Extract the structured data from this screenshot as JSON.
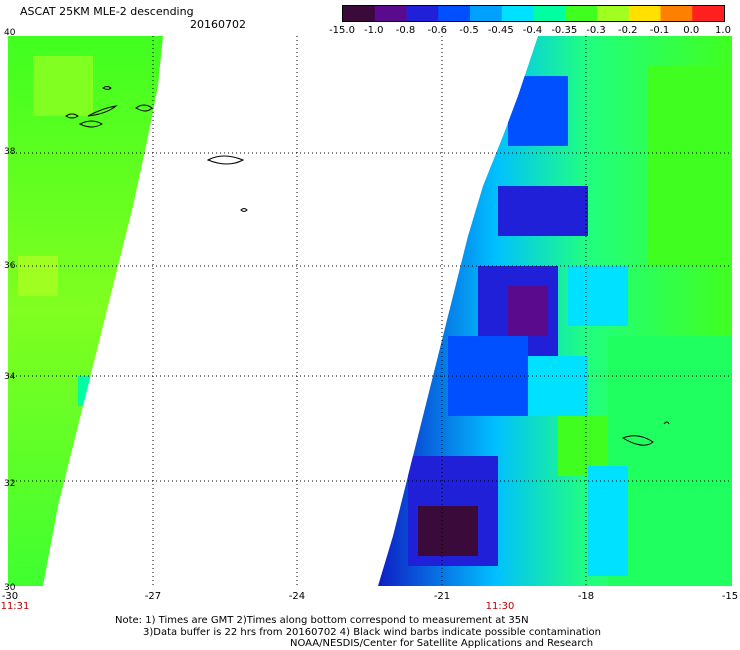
{
  "header": {
    "title": "ASCAT 25KM MLE-2 descending",
    "date": "20160702"
  },
  "colorbar": {
    "colors": [
      "#3a0a3a",
      "#5a0a8c",
      "#2020d8",
      "#0050ff",
      "#00a0ff",
      "#00e0ff",
      "#00ffa0",
      "#40ff20",
      "#a0ff20",
      "#ffe000",
      "#ff8000",
      "#ff2020"
    ],
    "labels": [
      "-15.0",
      "-1.0",
      "-0.8",
      "-0.6",
      "-0.5",
      "-0.45",
      "-0.4",
      "-0.35",
      "-0.3",
      "-0.2",
      "-0.1",
      "0.0",
      "1.0"
    ]
  },
  "map": {
    "lat_labels": [
      "40",
      "38",
      "36",
      "34",
      "32",
      "30"
    ],
    "lon_labels": [
      "-30",
      "-27",
      "-24",
      "-21",
      "-18",
      "-15"
    ],
    "times": [
      "11:31",
      "11:30"
    ]
  },
  "notes": [
    "Note: 1) Times are GMT 2)Times along bottom correspond to measurement at 35N",
    "3)Data buffer is 22 hrs from 20160702 4) Black wind barbs indicate possible contamination",
    "NOAA/NESDIS/Center for Satellite Applications and Research"
  ]
}
